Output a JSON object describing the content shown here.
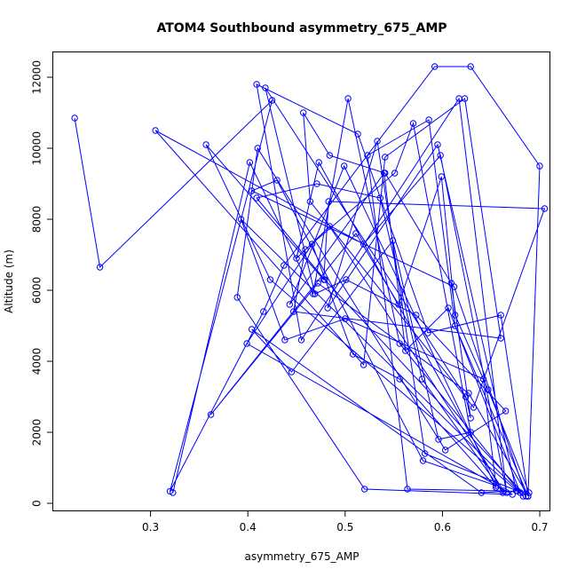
{
  "chart_data": {
    "type": "line",
    "title": "ATOM4 Southbound asymmetry_675_AMP",
    "xlabel": "asymmetry_675_AMP",
    "ylabel": "Altitude (m)",
    "xlim": [
      0.2,
      0.71
    ],
    "ylim": [
      -200,
      12700
    ],
    "xticks": [
      0.3,
      0.4,
      0.5,
      0.6,
      0.7
    ],
    "xtick_labels": [
      "0.3",
      "0.4",
      "0.5",
      "0.6",
      "0.7"
    ],
    "yticks": [
      0,
      2000,
      4000,
      6000,
      8000,
      10000,
      12000
    ],
    "ytick_labels": [
      "0",
      "2000",
      "4000",
      "6000",
      "8000",
      "10000",
      "12000"
    ],
    "color": "#0000ff",
    "marker": "open-circle",
    "legend": "none",
    "grid": false,
    "series": [
      {
        "x": [
          0.222,
          0.248,
          0.425,
          0.32,
          0.416,
          0.437,
          0.592,
          0.629,
          0.7,
          0.688,
          0.66,
          0.585,
          0.513,
          0.409,
          0.455,
          0.617,
          0.666,
          0.598,
          0.519,
          0.305,
          0.519,
          0.541,
          0.623,
          0.66,
          0.447,
          0.459,
          0.551,
          0.57,
          0.629,
          0.596,
          0.549,
          0.445,
          0.404,
          0.64,
          0.676,
          0.595,
          0.482,
          0.533,
          0.582,
          0.677,
          0.689,
          0.647,
          0.613,
          0.599,
          0.555,
          0.511,
          0.362,
          0.472,
          0.627,
          0.688,
          0.613,
          0.586,
          0.523,
          0.564,
          0.663,
          0.484,
          0.45,
          0.473,
          0.662,
          0.579,
          0.536,
          0.471,
          0.409,
          0.479,
          0.686,
          0.612,
          0.404,
          0.43,
          0.58,
          0.655,
          0.642,
          0.5,
          0.438,
          0.393,
          0.68,
          0.606,
          0.562,
          0.54,
          0.443,
          0.499,
          0.655,
          0.556,
          0.508,
          0.466,
          0.399,
          0.672,
          0.52,
          0.389,
          0.41,
          0.603,
          0.665,
          0.573,
          0.501,
          0.469,
          0.418,
          0.624,
          0.629,
          0.609,
          0.541,
          0.484,
          0.457,
          0.464,
          0.632,
          0.705,
          0.483,
          0.478,
          0.357,
          0.423,
          0.683,
          0.556,
          0.503,
          0.467,
          0.402,
          0.323
        ],
        "y": [
          10850,
          6650,
          11350,
          340,
          5400,
          6700,
          12300,
          12300,
          9500,
          200,
          5300,
          4800,
          10400,
          11800,
          4600,
          11400,
          300,
          9800,
          7300,
          10500,
          3900,
          9750,
          11400,
          4650,
          5400,
          7150,
          9300,
          10700,
          2000,
          1800,
          7400,
          3700,
          4900,
          300,
          350,
          10100,
          5500,
          10200,
          1400,
          350,
          300,
          3200,
          5300,
          9200,
          5600,
          7600,
          2500,
          6200,
          3100,
          200,
          5000,
          10800,
          9800,
          400,
          350,
          7800,
          6900,
          9600,
          300,
          3500,
          8600,
          9000,
          8600,
          6300,
          200,
          6100,
          8800,
          9100,
          1200,
          500,
          3500,
          5200,
          4600,
          8000,
          300,
          5500,
          4300,
          9300,
          5600,
          9500,
          450,
          3500,
          4200,
          7300,
          4500,
          250,
          400,
          5800,
          10000,
          1500,
          2600,
          5300,
          6300,
          5900,
          11700,
          3000,
          2400,
          6200,
          9300,
          9800,
          11000,
          8500,
          2700,
          8300,
          8500,
          6300,
          10100,
          6300,
          200,
          4500,
          11400,
          5900,
          9600,
          300
        ]
      }
    ]
  }
}
